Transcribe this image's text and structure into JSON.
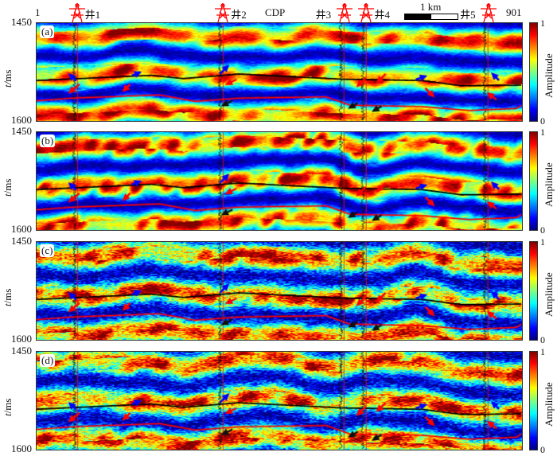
{
  "chart_data": {
    "type": "heatmap",
    "xlabel": "CDP",
    "x_ticks": [
      "1",
      "901"
    ],
    "ylabel": "t/ms",
    "ylabel_italic": "t",
    "ylabel_unit": "/ms",
    "y_ticks": [
      "1450",
      "1600"
    ],
    "ylim": [
      1450,
      1600
    ],
    "xlim": [
      1,
      901
    ],
    "colorbar": {
      "label": "Amplitude",
      "min_label": "0",
      "max_label": "1",
      "colormap": "jet",
      "range": [
        0,
        1
      ]
    },
    "scale_bar": "1 km",
    "wells": [
      {
        "name": "井1",
        "cdp": 77
      },
      {
        "name": "井2",
        "cdp": 347
      },
      {
        "name": "井3",
        "cdp": 571
      },
      {
        "name": "井4",
        "cdp": 612
      },
      {
        "name": "井5",
        "cdp": 838
      }
    ],
    "well_color": "#ff0000",
    "horizons": [
      {
        "color": "#000000",
        "points": [
          [
            1,
            1538
          ],
          [
            214,
            1530
          ],
          [
            273,
            1535
          ],
          [
            376,
            1528
          ],
          [
            568,
            1536
          ],
          [
            715,
            1538
          ],
          [
            789,
            1546
          ],
          [
            901,
            1545
          ]
        ]
      },
      {
        "color": "#ff0000",
        "points": [
          [
            1,
            1569
          ],
          [
            67,
            1565
          ],
          [
            229,
            1560
          ],
          [
            295,
            1570
          ],
          [
            376,
            1565
          ],
          [
            538,
            1563
          ],
          [
            582,
            1576
          ],
          [
            715,
            1578
          ],
          [
            803,
            1584
          ],
          [
            891,
            1581
          ],
          [
            901,
            1575
          ]
        ]
      }
    ],
    "panels": [
      {
        "label": "(a)"
      },
      {
        "label": "(b)"
      },
      {
        "label": "(c)"
      },
      {
        "label": "(d)"
      }
    ]
  }
}
